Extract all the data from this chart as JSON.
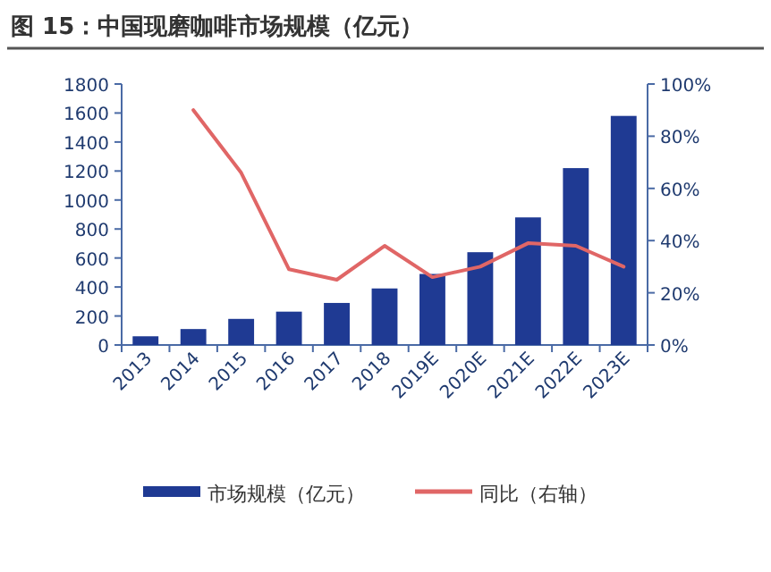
{
  "chart_data": {
    "type": "bar",
    "title": "图 15：中国现磨咖啡市场规模（亿元）",
    "categories": [
      "2013",
      "2014",
      "2015",
      "2016",
      "2017",
      "2018",
      "2019E",
      "2020E",
      "2021E",
      "2022E",
      "2023E"
    ],
    "series": [
      {
        "name": "市场规模（亿元）",
        "color": "#1f3a93",
        "values": [
          60,
          110,
          180,
          230,
          290,
          390,
          490,
          640,
          880,
          1220,
          1580
        ]
      },
      {
        "name": "同比（右轴）",
        "type": "line",
        "axis": "y2",
        "color": "#e06666",
        "values": [
          null,
          90,
          66,
          29,
          25,
          38,
          26,
          30,
          39,
          38,
          30
        ]
      }
    ],
    "ylim": [
      0,
      1800
    ],
    "yticks": [
      0,
      200,
      400,
      600,
      800,
      1000,
      1200,
      1400,
      1600,
      1800
    ],
    "y2lim": [
      0,
      100
    ],
    "y2ticks": [
      {
        "value": 0,
        "label": "0%"
      },
      {
        "value": 20,
        "label": "20%"
      },
      {
        "value": 40,
        "label": "40%"
      },
      {
        "value": 60,
        "label": "60%"
      },
      {
        "value": 80,
        "label": "80%"
      },
      {
        "value": 100,
        "label": "100%"
      }
    ],
    "legend": "bottom",
    "grid": false,
    "marker": "none",
    "line_style": "solid"
  }
}
